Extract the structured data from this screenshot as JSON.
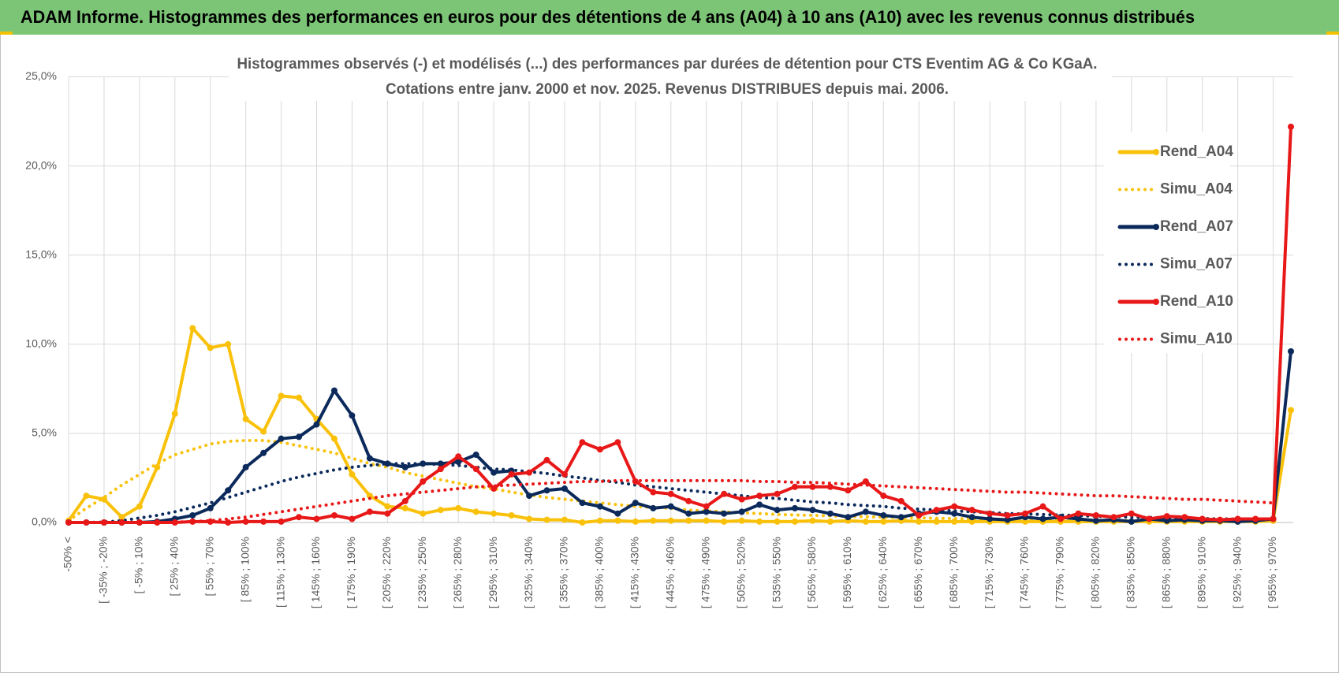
{
  "chart_data": {
    "type": "line",
    "header": "ADAM Informe. Histogrammes des performances en euros pour des détentions de 4 ans (A04) à 10 ans (A10) avec les revenus connus distribués",
    "title": "Histogrammes observés (-) et modélisés (...) des performances par durées de détention pour CTS Eventim AG & Co KGaA.",
    "subtitle": "Cotations entre janv. 2000 et nov. 2025. Revenus DISTRIBUES depuis mai. 2006.",
    "categories": [
      "-50% <",
      null,
      "[ -35% ; -20%",
      null,
      "[ -5% ; 10%",
      null,
      "[ 25% ; 40%",
      null,
      "[ 55% ; 70%",
      null,
      "[ 85% ; 100%",
      null,
      "[ 115% ; 130%",
      null,
      "[ 145% ; 160%",
      null,
      "[ 175% ; 190%",
      null,
      "[ 205% ; 220%",
      null,
      "[ 235% ; 250%",
      null,
      "[ 265% ; 280%",
      null,
      "[ 295% ; 310%",
      null,
      "[ 325% ; 340%",
      null,
      "[ 355% ; 370%",
      null,
      "[ 385% ; 400%",
      null,
      "[ 415% ; 430%",
      null,
      "[ 445% ; 460%",
      null,
      "[ 475% ; 490%",
      null,
      "[ 505% ; 520%",
      null,
      "[ 535% ; 550%",
      null,
      "[ 565% ; 580%",
      null,
      "[ 595% ; 610%",
      null,
      "[ 625% ; 640%",
      null,
      "[ 655% ; 670%",
      null,
      "[ 685% ; 700%",
      null,
      "[ 715% ; 730%",
      null,
      "[ 745% ; 760%",
      null,
      "[ 775% ; 790%",
      null,
      "[ 805% ; 820%",
      null,
      "[ 835% ; 850%",
      null,
      "[ 865% ; 880%",
      null,
      "[ 895% ; 910%",
      null,
      "[ 925% ; 940%",
      null,
      "[ 955% ; 970%",
      null
    ],
    "series": [
      {
        "name": "Rend_A04",
        "color": "#f9c10a",
        "line_style": "solid",
        "markers": true,
        "values": [
          0.1,
          1.5,
          1.3,
          0.3,
          0.9,
          3.1,
          6.1,
          10.9,
          9.8,
          10.0,
          5.8,
          5.1,
          7.1,
          7.0,
          5.8,
          4.7,
          2.7,
          1.5,
          0.9,
          0.8,
          0.5,
          0.7,
          0.8,
          0.6,
          0.5,
          0.4,
          0.2,
          0.15,
          0.15,
          0.0,
          0.1,
          0.1,
          0.05,
          0.1,
          0.1,
          0.1,
          0.1,
          0.05,
          0.1,
          0.05,
          0.05,
          0.05,
          0.1,
          0.05,
          0.1,
          0.05,
          0.05,
          0.1,
          0.05,
          0.05,
          0.05,
          0.05,
          0.05,
          0.05,
          0.05,
          0.05,
          0.05,
          0.05,
          0.05,
          0.05,
          0.05,
          0.05,
          0.05,
          0.05,
          0.05,
          0.05,
          0.05,
          0.05,
          0.1,
          6.3
        ]
      },
      {
        "name": "Simu_A04",
        "color": "#f9c10a",
        "line_style": "dotted",
        "markers": false,
        "values": [
          0.1,
          0.8,
          1.4,
          2.1,
          2.7,
          3.3,
          3.8,
          4.1,
          4.4,
          4.55,
          4.6,
          4.6,
          4.5,
          4.3,
          4.1,
          3.9,
          3.6,
          3.3,
          3.1,
          2.8,
          2.6,
          2.4,
          2.2,
          2.0,
          1.9,
          1.7,
          1.55,
          1.4,
          1.3,
          1.2,
          1.1,
          1.0,
          0.9,
          0.85,
          0.8,
          0.7,
          0.65,
          0.6,
          0.55,
          0.5,
          0.45,
          0.42,
          0.4,
          0.37,
          0.34,
          0.32,
          0.3,
          0.28,
          0.26,
          0.24,
          0.22,
          0.2,
          0.19,
          0.18,
          0.17,
          0.16,
          0.15,
          0.14,
          0.13,
          0.12,
          0.11,
          0.1,
          0.1,
          0.09,
          0.09,
          0.08,
          0.08,
          0.07,
          0.07,
          null
        ]
      },
      {
        "name": "Rend_A07",
        "color": "#0b2a5b",
        "line_style": "solid",
        "markers": true,
        "values": [
          0,
          0,
          0,
          0,
          0,
          0.05,
          0.2,
          0.4,
          0.8,
          1.8,
          3.1,
          3.9,
          4.7,
          4.8,
          5.5,
          7.4,
          6.0,
          3.6,
          3.3,
          3.1,
          3.3,
          3.3,
          3.4,
          3.8,
          2.8,
          2.9,
          1.5,
          1.8,
          1.9,
          1.1,
          0.9,
          0.5,
          1.1,
          0.8,
          0.9,
          0.5,
          0.6,
          0.5,
          0.6,
          1.0,
          0.7,
          0.8,
          0.7,
          0.5,
          0.3,
          0.6,
          0.4,
          0.3,
          0.5,
          0.6,
          0.5,
          0.3,
          0.2,
          0.15,
          0.3,
          0.2,
          0.3,
          0.2,
          0.1,
          0.15,
          0.05,
          0.2,
          0.1,
          0.15,
          0.1,
          0.1,
          0.05,
          0.1,
          0.2,
          9.6
        ]
      },
      {
        "name": "Simu_A07",
        "color": "#0b2a5b",
        "line_style": "dotted",
        "markers": false,
        "values": [
          0,
          0,
          0.02,
          0.1,
          0.25,
          0.4,
          0.6,
          0.85,
          1.1,
          1.4,
          1.7,
          2.0,
          2.3,
          2.55,
          2.75,
          2.95,
          3.1,
          3.2,
          3.3,
          3.3,
          3.3,
          3.25,
          3.2,
          3.1,
          3.0,
          2.95,
          2.85,
          2.75,
          2.6,
          2.5,
          2.35,
          2.25,
          2.1,
          2.0,
          1.9,
          1.8,
          1.7,
          1.6,
          1.5,
          1.4,
          1.35,
          1.25,
          1.15,
          1.1,
          1.0,
          0.95,
          0.9,
          0.8,
          0.75,
          0.7,
          0.65,
          0.6,
          0.55,
          0.5,
          0.48,
          0.45,
          0.42,
          0.38,
          0.35,
          0.33,
          0.3,
          0.28,
          0.26,
          0.24,
          0.22,
          0.2,
          0.19,
          0.18,
          0.17,
          null
        ]
      },
      {
        "name": "Rend_A10",
        "color": "#e81818",
        "line_style": "solid",
        "markers": true,
        "values": [
          0,
          0,
          0,
          0,
          0,
          0,
          0,
          0.05,
          0.05,
          0,
          0.05,
          0.05,
          0.05,
          0.3,
          0.2,
          0.4,
          0.2,
          0.6,
          0.5,
          1.2,
          2.3,
          3.0,
          3.7,
          3.0,
          1.9,
          2.7,
          2.8,
          3.5,
          2.7,
          4.5,
          4.1,
          4.5,
          2.3,
          1.7,
          1.6,
          1.2,
          0.9,
          1.6,
          1.3,
          1.5,
          1.6,
          2.0,
          2.0,
          2.0,
          1.8,
          2.3,
          1.5,
          1.2,
          0.4,
          0.7,
          0.9,
          0.7,
          0.5,
          0.4,
          0.5,
          0.9,
          0.2,
          0.5,
          0.4,
          0.3,
          0.5,
          0.2,
          0.35,
          0.3,
          0.2,
          0.15,
          0.2,
          0.2,
          0.2,
          22.2
        ]
      },
      {
        "name": "Simu_A10",
        "color": "#e81818",
        "line_style": "dotted",
        "markers": false,
        "values": [
          0,
          0,
          0,
          0,
          0,
          0,
          0.02,
          0.05,
          0.1,
          0.2,
          0.3,
          0.45,
          0.6,
          0.75,
          0.9,
          1.05,
          1.2,
          1.35,
          1.5,
          1.6,
          1.7,
          1.8,
          1.9,
          2.0,
          2.05,
          2.1,
          2.15,
          2.2,
          2.25,
          2.3,
          2.3,
          2.35,
          2.35,
          2.35,
          2.35,
          2.35,
          2.35,
          2.35,
          2.35,
          2.3,
          2.3,
          2.25,
          2.25,
          2.2,
          2.15,
          2.1,
          2.05,
          2.0,
          1.95,
          1.9,
          1.85,
          1.8,
          1.75,
          1.7,
          1.7,
          1.65,
          1.6,
          1.55,
          1.5,
          1.5,
          1.45,
          1.4,
          1.35,
          1.3,
          1.3,
          1.25,
          1.2,
          1.15,
          1.1,
          null
        ]
      }
    ],
    "ylim": [
      0,
      25
    ],
    "yticks": [
      {
        "value": 0,
        "label": "0,0%"
      },
      {
        "value": 5,
        "label": "5,0%"
      },
      {
        "value": 10,
        "label": "10,0%"
      },
      {
        "value": 15,
        "label": "15,0%"
      },
      {
        "value": 20,
        "label": "20,0%"
      },
      {
        "value": 25,
        "label": "25,0%"
      }
    ],
    "grid": true,
    "legend": "right"
  }
}
